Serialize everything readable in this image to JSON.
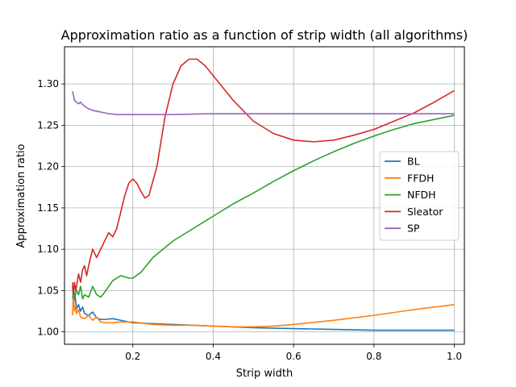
{
  "chart_data": {
    "type": "line",
    "title": "Approximation ratio as a function of strip width (all algorithms)",
    "xlabel": "Strip width",
    "ylabel": "Approximation ratio",
    "xlim": [
      0.03,
      1.025
    ],
    "ylim": [
      0.985,
      1.345
    ],
    "x_ticks": [
      0.2,
      0.4,
      0.6,
      0.8,
      1.0
    ],
    "x_tick_labels": [
      "0.2",
      "0.4",
      "0.6",
      "0.8",
      "1.0"
    ],
    "y_ticks": [
      1.0,
      1.05,
      1.1,
      1.15,
      1.2,
      1.25,
      1.3
    ],
    "y_tick_labels": [
      "1.00",
      "1.05",
      "1.10",
      "1.15",
      "1.20",
      "1.25",
      "1.30"
    ],
    "grid": true,
    "legend_position": "center-right",
    "series": [
      {
        "name": "BL",
        "color": "#1f77b4",
        "points": [
          [
            0.05,
            1.055
          ],
          [
            0.053,
            1.035
          ],
          [
            0.056,
            1.045
          ],
          [
            0.06,
            1.028
          ],
          [
            0.065,
            1.033
          ],
          [
            0.07,
            1.025
          ],
          [
            0.075,
            1.03
          ],
          [
            0.08,
            1.022
          ],
          [
            0.09,
            1.02
          ],
          [
            0.1,
            1.024
          ],
          [
            0.11,
            1.017
          ],
          [
            0.12,
            1.015
          ],
          [
            0.13,
            1.015
          ],
          [
            0.15,
            1.016
          ],
          [
            0.17,
            1.014
          ],
          [
            0.2,
            1.011
          ],
          [
            0.25,
            1.01
          ],
          [
            0.3,
            1.009
          ],
          [
            0.35,
            1.008
          ],
          [
            0.4,
            1.007
          ],
          [
            0.5,
            1.005
          ],
          [
            0.6,
            1.004
          ],
          [
            0.7,
            1.003
          ],
          [
            0.8,
            1.002
          ],
          [
            0.9,
            1.002
          ],
          [
            1.0,
            1.002
          ]
        ]
      },
      {
        "name": "FFDH",
        "color": "#ff7f0e",
        "points": [
          [
            0.05,
            1.02
          ],
          [
            0.052,
            1.045
          ],
          [
            0.055,
            1.025
          ],
          [
            0.058,
            1.03
          ],
          [
            0.06,
            1.022
          ],
          [
            0.065,
            1.027
          ],
          [
            0.07,
            1.018
          ],
          [
            0.08,
            1.016
          ],
          [
            0.09,
            1.02
          ],
          [
            0.1,
            1.014
          ],
          [
            0.11,
            1.018
          ],
          [
            0.12,
            1.012
          ],
          [
            0.13,
            1.011
          ],
          [
            0.15,
            1.011
          ],
          [
            0.17,
            1.012
          ],
          [
            0.2,
            1.012
          ],
          [
            0.25,
            1.009
          ],
          [
            0.3,
            1.008
          ],
          [
            0.35,
            1.008
          ],
          [
            0.4,
            1.007
          ],
          [
            0.45,
            1.006
          ],
          [
            0.5,
            1.006
          ],
          [
            0.55,
            1.007
          ],
          [
            0.6,
            1.009
          ],
          [
            0.7,
            1.014
          ],
          [
            0.8,
            1.02
          ],
          [
            0.9,
            1.027
          ],
          [
            1.0,
            1.033
          ]
        ]
      },
      {
        "name": "NFDH",
        "color": "#2ca02c",
        "points": [
          [
            0.05,
            1.04
          ],
          [
            0.053,
            1.05
          ],
          [
            0.056,
            1.043
          ],
          [
            0.06,
            1.05
          ],
          [
            0.065,
            1.045
          ],
          [
            0.07,
            1.055
          ],
          [
            0.075,
            1.04
          ],
          [
            0.08,
            1.045
          ],
          [
            0.09,
            1.042
          ],
          [
            0.1,
            1.055
          ],
          [
            0.11,
            1.045
          ],
          [
            0.12,
            1.042
          ],
          [
            0.13,
            1.048
          ],
          [
            0.14,
            1.055
          ],
          [
            0.15,
            1.062
          ],
          [
            0.17,
            1.068
          ],
          [
            0.19,
            1.065
          ],
          [
            0.2,
            1.065
          ],
          [
            0.22,
            1.072
          ],
          [
            0.25,
            1.09
          ],
          [
            0.3,
            1.11
          ],
          [
            0.35,
            1.125
          ],
          [
            0.4,
            1.14
          ],
          [
            0.45,
            1.155
          ],
          [
            0.5,
            1.168
          ],
          [
            0.55,
            1.182
          ],
          [
            0.6,
            1.195
          ],
          [
            0.65,
            1.207
          ],
          [
            0.7,
            1.218
          ],
          [
            0.75,
            1.228
          ],
          [
            0.8,
            1.237
          ],
          [
            0.85,
            1.245
          ],
          [
            0.9,
            1.252
          ],
          [
            0.95,
            1.257
          ],
          [
            1.0,
            1.262
          ]
        ]
      },
      {
        "name": "Sleator",
        "color": "#d62728",
        "points": [
          [
            0.05,
            1.06
          ],
          [
            0.052,
            1.045
          ],
          [
            0.055,
            1.06
          ],
          [
            0.058,
            1.05
          ],
          [
            0.06,
            1.055
          ],
          [
            0.065,
            1.07
          ],
          [
            0.07,
            1.06
          ],
          [
            0.075,
            1.075
          ],
          [
            0.08,
            1.08
          ],
          [
            0.085,
            1.068
          ],
          [
            0.09,
            1.08
          ],
          [
            0.1,
            1.1
          ],
          [
            0.11,
            1.09
          ],
          [
            0.12,
            1.1
          ],
          [
            0.13,
            1.11
          ],
          [
            0.14,
            1.12
          ],
          [
            0.15,
            1.115
          ],
          [
            0.16,
            1.125
          ],
          [
            0.17,
            1.145
          ],
          [
            0.18,
            1.165
          ],
          [
            0.19,
            1.18
          ],
          [
            0.2,
            1.185
          ],
          [
            0.21,
            1.18
          ],
          [
            0.22,
            1.17
          ],
          [
            0.23,
            1.162
          ],
          [
            0.24,
            1.165
          ],
          [
            0.26,
            1.2
          ],
          [
            0.28,
            1.26
          ],
          [
            0.3,
            1.3
          ],
          [
            0.32,
            1.322
          ],
          [
            0.34,
            1.33
          ],
          [
            0.36,
            1.33
          ],
          [
            0.38,
            1.322
          ],
          [
            0.4,
            1.31
          ],
          [
            0.45,
            1.28
          ],
          [
            0.5,
            1.255
          ],
          [
            0.55,
            1.24
          ],
          [
            0.6,
            1.232
          ],
          [
            0.65,
            1.23
          ],
          [
            0.7,
            1.232
          ],
          [
            0.75,
            1.238
          ],
          [
            0.8,
            1.245
          ],
          [
            0.85,
            1.255
          ],
          [
            0.9,
            1.265
          ],
          [
            0.95,
            1.278
          ],
          [
            1.0,
            1.292
          ]
        ]
      },
      {
        "name": "SP",
        "color": "#9467bd",
        "points": [
          [
            0.05,
            1.291
          ],
          [
            0.055,
            1.28
          ],
          [
            0.06,
            1.278
          ],
          [
            0.065,
            1.276
          ],
          [
            0.07,
            1.278
          ],
          [
            0.075,
            1.275
          ],
          [
            0.08,
            1.273
          ],
          [
            0.09,
            1.27
          ],
          [
            0.1,
            1.268
          ],
          [
            0.12,
            1.266
          ],
          [
            0.14,
            1.264
          ],
          [
            0.16,
            1.263
          ],
          [
            0.2,
            1.263
          ],
          [
            0.3,
            1.263
          ],
          [
            0.4,
            1.264
          ],
          [
            0.5,
            1.264
          ],
          [
            0.6,
            1.264
          ],
          [
            0.7,
            1.264
          ],
          [
            0.8,
            1.264
          ],
          [
            0.9,
            1.264
          ],
          [
            1.0,
            1.264
          ]
        ]
      }
    ]
  }
}
